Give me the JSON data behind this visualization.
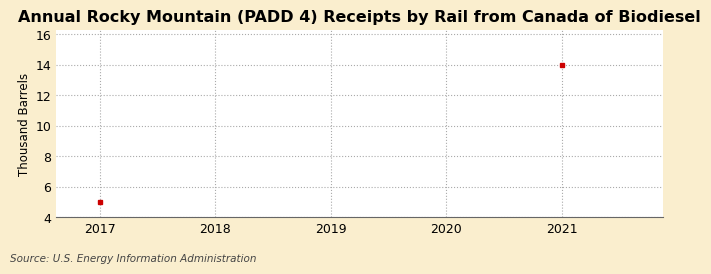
{
  "title": "Annual Rocky Mountain (PADD 4) Receipts by Rail from Canada of Biodiesel",
  "ylabel": "Thousand Barrels",
  "source": "Source: U.S. Energy Information Administration",
  "x_values": [
    2017,
    2021
  ],
  "y_values": [
    5,
    14
  ],
  "point_color": "#cc0000",
  "marker": "s",
  "marker_size": 3.5,
  "xlim": [
    2016.62,
    2021.88
  ],
  "ylim": [
    4,
    16.3
  ],
  "yticks": [
    4,
    6,
    8,
    10,
    12,
    14,
    16
  ],
  "xticks": [
    2017,
    2018,
    2019,
    2020,
    2021
  ],
  "background_color": "#faeece",
  "plot_bg_color": "#ffffff",
  "grid_color": "#aaaaaa",
  "title_fontsize": 11.5,
  "label_fontsize": 8.5,
  "tick_fontsize": 9,
  "source_fontsize": 7.5
}
